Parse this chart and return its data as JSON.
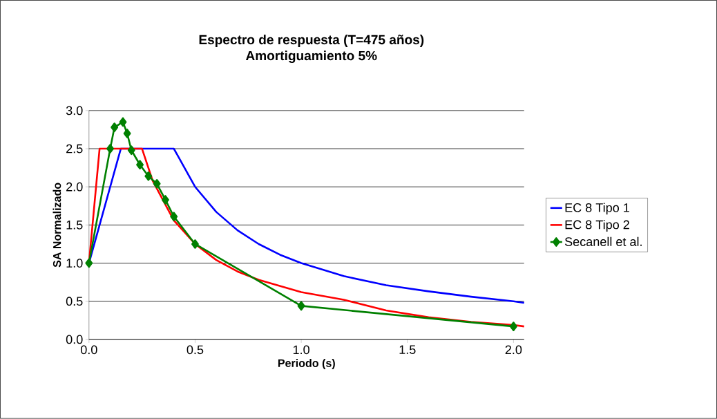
{
  "chart_data": {
    "type": "line",
    "title": "Espectro de respuesta (T=475 años)",
    "subtitle": "Amortiguamiento 5%",
    "xlabel": "Periodo (s)",
    "ylabel": "SA Normalizado",
    "xlim": [
      0,
      2.05
    ],
    "ylim": [
      0,
      3.0
    ],
    "xticks": [
      {
        "value": 0,
        "label": "0.0"
      },
      {
        "value": 0.5,
        "label": "0.5"
      },
      {
        "value": 1.0,
        "label": "1.0"
      },
      {
        "value": 1.5,
        "label": "1.5"
      },
      {
        "value": 2.0,
        "label": "2.0"
      }
    ],
    "yticks": [
      {
        "value": 0,
        "label": "0.0"
      },
      {
        "value": 0.5,
        "label": "0.5"
      },
      {
        "value": 1.0,
        "label": "1.0"
      },
      {
        "value": 1.5,
        "label": "1.5"
      },
      {
        "value": 2.0,
        "label": "2.0"
      },
      {
        "value": 2.5,
        "label": "2.5"
      },
      {
        "value": 3.0,
        "label": "3.0"
      }
    ],
    "grid": "y",
    "legend": "right",
    "series": [
      {
        "name": "EC 8 Tipo 1",
        "color": "#0000ff",
        "marker": "none",
        "x": [
          0,
          0.15,
          0.4,
          0.5,
          0.6,
          0.7,
          0.8,
          0.9,
          1.0,
          1.2,
          1.4,
          1.6,
          1.8,
          2.0,
          2.05
        ],
        "values": [
          1.0,
          2.5,
          2.5,
          2.0,
          1.67,
          1.43,
          1.25,
          1.11,
          1.0,
          0.83,
          0.71,
          0.63,
          0.56,
          0.5,
          0.48
        ]
      },
      {
        "name": "EC 8 Tipo 2",
        "color": "#ff0000",
        "marker": "none",
        "x": [
          0,
          0.05,
          0.25,
          0.3,
          0.4,
          0.5,
          0.6,
          0.7,
          0.8,
          1.0,
          1.2,
          1.4,
          1.6,
          1.8,
          2.0,
          2.05
        ],
        "values": [
          1.0,
          2.5,
          2.5,
          2.08,
          1.56,
          1.25,
          1.04,
          0.89,
          0.78,
          0.62,
          0.52,
          0.38,
          0.29,
          0.23,
          0.19,
          0.17
        ]
      },
      {
        "name": "Secanell et al.",
        "color": "#008000",
        "marker": "diamond",
        "x": [
          0,
          0.1,
          0.12,
          0.16,
          0.18,
          0.2,
          0.24,
          0.28,
          0.32,
          0.36,
          0.4,
          0.5,
          1.0,
          2.0
        ],
        "values": [
          1.0,
          2.5,
          2.78,
          2.85,
          2.7,
          2.48,
          2.29,
          2.14,
          2.04,
          1.83,
          1.61,
          1.25,
          0.44,
          0.17
        ]
      }
    ]
  }
}
